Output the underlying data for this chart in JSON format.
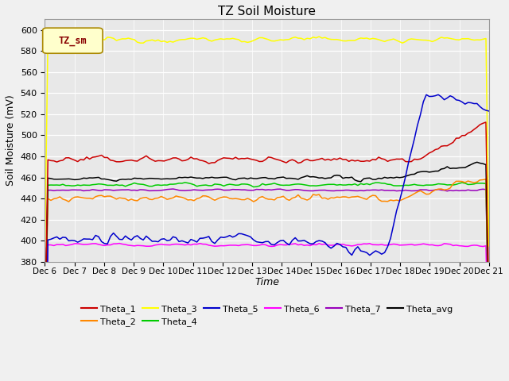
{
  "title": "TZ Soil Moisture",
  "ylabel": "Soil Moisture (mV)",
  "xlabel": "Time",
  "legend_label": "TZ_sm",
  "ylim": [
    380,
    610
  ],
  "yticks": [
    380,
    400,
    420,
    440,
    460,
    480,
    500,
    520,
    540,
    560,
    580,
    600
  ],
  "x_labels": [
    "Dec 6",
    "Dec 7",
    "Dec 8",
    "Dec 9",
    "Dec 10",
    "Dec 11",
    "Dec 12",
    "Dec 13",
    "Dec 14",
    "Dec 15",
    "Dec 16",
    "Dec 17",
    "Dec 18",
    "Dec 19",
    "Dec 20",
    "Dec 21"
  ],
  "colors": {
    "Theta_1": "#cc0000",
    "Theta_2": "#ff8800",
    "Theta_3": "#ffff00",
    "Theta_4": "#00cc00",
    "Theta_5": "#0000cc",
    "Theta_6": "#ff00ff",
    "Theta_7": "#9900bb",
    "Theta_avg": "#000000"
  },
  "figsize": [
    6.4,
    4.8
  ],
  "dpi": 100,
  "bg_color": "#e8e8e8",
  "fig_bg": "#f0f0f0"
}
